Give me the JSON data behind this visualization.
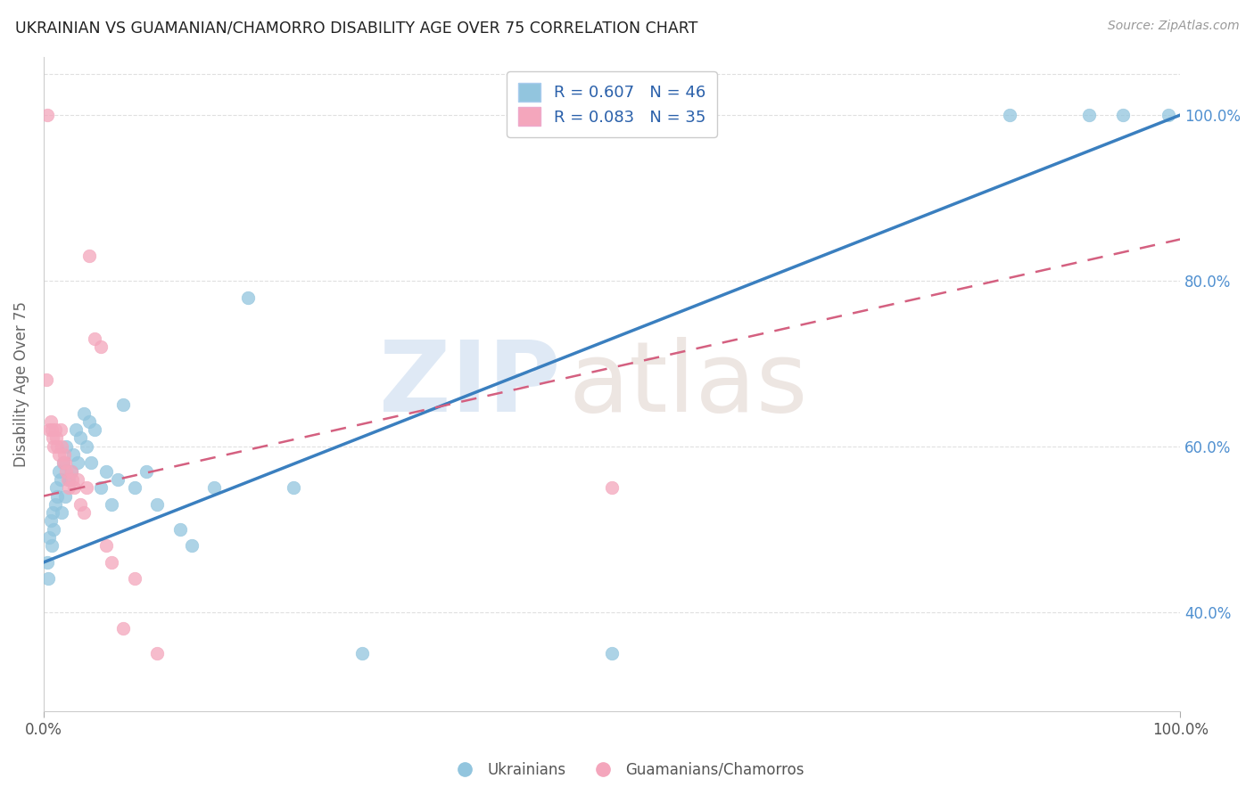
{
  "title": "UKRAINIAN VS GUAMANIAN/CHAMORRO DISABILITY AGE OVER 75 CORRELATION CHART",
  "source": "Source: ZipAtlas.com",
  "ylabel_left": "Disability Age Over 75",
  "legend_label_1": "Ukrainians",
  "legend_label_2": "Guamanians/Chamorros",
  "legend_R1": "R = 0.607",
  "legend_N1": "N = 46",
  "legend_R2": "R = 0.083",
  "legend_N2": "N = 35",
  "blue_color": "#92c5de",
  "pink_color": "#f4a6bc",
  "blue_line_color": "#3a7fbf",
  "pink_line_color": "#d46080",
  "title_color": "#222222",
  "grid_color": "#e0e0e0",
  "xmin": 0,
  "xmax": 100,
  "ymin": 28,
  "ymax": 107,
  "yticks": [
    40,
    60,
    80,
    100
  ],
  "blue_scatter_x": [
    0.3,
    0.4,
    0.5,
    0.6,
    0.7,
    0.8,
    0.9,
    1.0,
    1.1,
    1.2,
    1.3,
    1.5,
    1.6,
    1.7,
    1.9,
    2.0,
    2.2,
    2.4,
    2.6,
    2.8,
    3.0,
    3.2,
    3.5,
    3.8,
    4.0,
    4.2,
    4.5,
    5.0,
    5.5,
    6.0,
    6.5,
    7.0,
    8.0,
    9.0,
    10.0,
    12.0,
    13.0,
    15.0,
    18.0,
    22.0,
    28.0,
    50.0,
    85.0,
    92.0,
    95.0,
    99.0
  ],
  "blue_scatter_y": [
    46.0,
    44.0,
    49.0,
    51.0,
    48.0,
    52.0,
    50.0,
    53.0,
    55.0,
    54.0,
    57.0,
    56.0,
    52.0,
    58.0,
    54.0,
    60.0,
    56.0,
    57.0,
    59.0,
    62.0,
    58.0,
    61.0,
    64.0,
    60.0,
    63.0,
    58.0,
    62.0,
    55.0,
    57.0,
    53.0,
    56.0,
    65.0,
    55.0,
    57.0,
    53.0,
    50.0,
    48.0,
    55.0,
    78.0,
    55.0,
    35.0,
    35.0,
    100.0,
    100.0,
    100.0,
    100.0
  ],
  "pink_scatter_x": [
    0.2,
    0.3,
    0.5,
    0.6,
    0.7,
    0.8,
    0.9,
    1.0,
    1.1,
    1.2,
    1.3,
    1.5,
    1.6,
    1.7,
    1.8,
    1.9,
    2.0,
    2.1,
    2.2,
    2.4,
    2.5,
    2.7,
    3.0,
    3.2,
    3.5,
    3.8,
    4.0,
    4.5,
    5.0,
    5.5,
    6.0,
    7.0,
    8.0,
    10.0,
    50.0
  ],
  "pink_scatter_y": [
    68.0,
    100.0,
    62.0,
    63.0,
    62.0,
    61.0,
    60.0,
    62.0,
    61.0,
    60.0,
    59.0,
    62.0,
    60.0,
    58.0,
    59.0,
    58.0,
    57.0,
    56.0,
    55.0,
    57.0,
    56.0,
    55.0,
    56.0,
    53.0,
    52.0,
    55.0,
    83.0,
    73.0,
    72.0,
    48.0,
    46.0,
    38.0,
    44.0,
    35.0,
    55.0
  ],
  "blue_trendline_x": [
    0,
    100
  ],
  "blue_trendline_y": [
    46.0,
    100.0
  ],
  "pink_trendline_x": [
    0,
    100
  ],
  "pink_trendline_y": [
    54.0,
    85.0
  ]
}
